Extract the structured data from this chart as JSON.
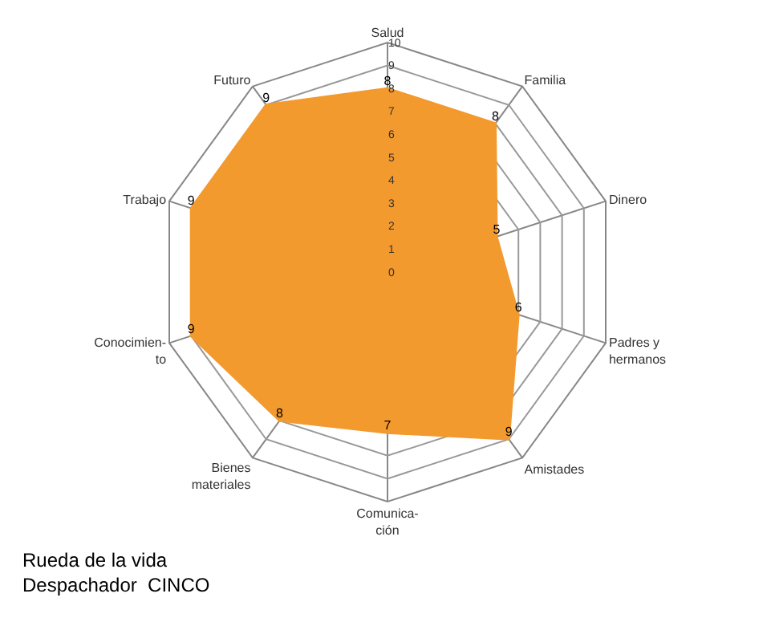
{
  "chart_data": {
    "type": "radar",
    "title": "Rueda de la vida\nDespachador  CINCO",
    "categories": [
      "Salud",
      "Familia",
      "Dinero",
      "Padres y\nhermanos",
      "Amistades",
      "Comunica-\nción",
      "Bienes\nmateriales",
      "Conocimien-\nto",
      "Trabajo",
      "Futuro"
    ],
    "series": [
      {
        "color": "#f39a2e",
        "values": [
          8,
          8,
          5,
          6,
          9,
          7,
          8,
          9,
          9,
          9
        ]
      }
    ],
    "ylim": [
      0,
      10
    ],
    "yticks": [
      0,
      1,
      2,
      3,
      4,
      5,
      6,
      7,
      8,
      9,
      10
    ],
    "data_labels": true,
    "grid": true,
    "marker": "none"
  }
}
